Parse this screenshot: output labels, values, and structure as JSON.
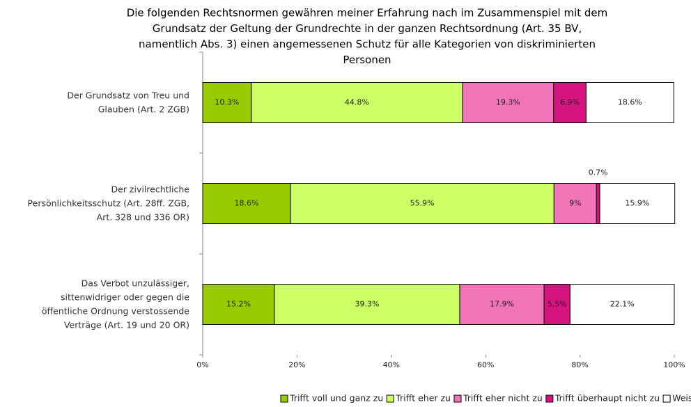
{
  "chart_data": {
    "type": "stacked_barh",
    "title": "Die folgenden Rechtsnormen gewähren meiner Erfahrung nach im Zusammenspiel mit dem\nGrundsatz der Geltung der Grundrechte in der ganzen Rechtsordnung (Art. 35 BV,\nnamentlich Abs. 3) einen angemessenen Schutz für alle Kategorien von diskriminierten\nPersonen",
    "categories": [
      "Der Grundsatz von Treu und\nGlauben (Art. 2 ZGB)",
      "Der zivilrechtliche\nPersönlichkeitsschutz (Art. 28ff. ZGB,\nArt. 328 und 336 OR)",
      "Das Verbot unzulässiger,\nsittenwidriger oder gegen die\nöffentliche Ordnung verstossende\nVerträge (Art. 19 und 20 OR)"
    ],
    "series": [
      {
        "name": "Trifft voll und ganz zu",
        "color": "#99cc00",
        "values": [
          10.3,
          18.6,
          15.2
        ],
        "value_labels": [
          "10.3%",
          "18.6%",
          "15.2%"
        ]
      },
      {
        "name": "Trifft eher zu",
        "color": "#ccff66",
        "values": [
          44.8,
          55.9,
          39.3
        ],
        "value_labels": [
          "44.8%",
          "55.9%",
          "39.3%"
        ]
      },
      {
        "name": "Trifft eher nicht zu",
        "color": "#f075b8",
        "values": [
          19.3,
          9,
          17.9
        ],
        "value_labels": [
          "19.3%",
          "9%",
          "17.9%"
        ]
      },
      {
        "name": "Trifft überhaupt nicht zu",
        "color": "#d6147f",
        "values": [
          6.9,
          0.7,
          5.5
        ],
        "value_labels": [
          "6.9%",
          "0.7%",
          "5.5%"
        ]
      },
      {
        "name": "Weiss nicht",
        "color": "#ffffff",
        "values": [
          18.6,
          15.9,
          22.1
        ],
        "value_labels": [
          "18.6%",
          "15.9%",
          "22.1%"
        ]
      }
    ],
    "xlim": [
      0,
      100
    ],
    "xticks": [
      {
        "value": 0,
        "label": "0%"
      },
      {
        "value": 20,
        "label": "20%"
      },
      {
        "value": 40,
        "label": "40%"
      },
      {
        "value": 60,
        "label": "60%"
      },
      {
        "value": 80,
        "label": "80%"
      },
      {
        "value": 100,
        "label": "100%"
      }
    ],
    "legend": "bottom"
  }
}
